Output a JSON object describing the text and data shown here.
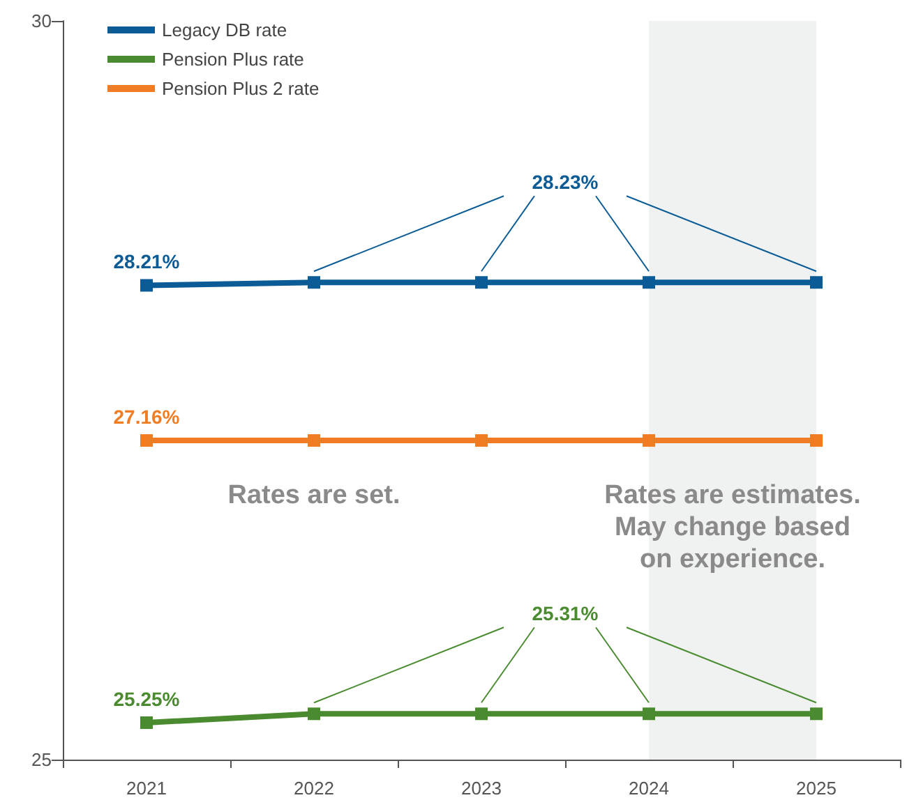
{
  "chart_data": {
    "type": "line",
    "categories": [
      "2021",
      "2022",
      "2023",
      "2024",
      "2025"
    ],
    "series": [
      {
        "name": "Legacy DB rate",
        "color": "#0b5c96",
        "values": [
          28.21,
          28.23,
          28.23,
          28.23,
          28.23
        ]
      },
      {
        "name": "Pension Plus rate",
        "color": "#4b8b2f",
        "values": [
          25.25,
          25.31,
          25.31,
          25.31,
          25.31
        ]
      },
      {
        "name": "Pension Plus 2 rate",
        "color": "#f07d23",
        "values": [
          27.16,
          27.16,
          27.16,
          27.16,
          27.16
        ]
      }
    ],
    "ylim": [
      25,
      30
    ],
    "yticks": [
      25,
      30
    ],
    "grid": false,
    "legend": "top left",
    "marker": "square",
    "line_style": "solid",
    "bands": [
      {
        "axis": "x",
        "from": "2024",
        "to": "2025",
        "color": "#f0f2f1"
      }
    ],
    "annotations": [
      {
        "text": "28.21%",
        "x": "2021",
        "y": 28.21
      },
      {
        "text": "28.23%",
        "x": "2023",
        "y": 28.23
      },
      {
        "text": "27.16%",
        "x": "2021",
        "y": 27.16
      },
      {
        "text": "25.25%",
        "x": "2021",
        "y": 25.25
      },
      {
        "text": "25.31%",
        "x": "2023",
        "y": 25.31
      },
      "Rates are set.",
      "Rates are estimates.\nMay change based\non experience."
    ]
  }
}
